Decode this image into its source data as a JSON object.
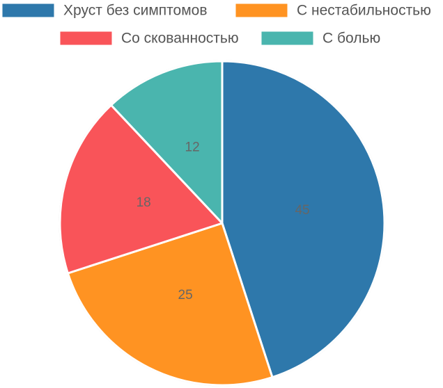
{
  "chart_data": {
    "type": "pie",
    "categories": [
      "Хруст без симптомов",
      "С нестабильностью",
      "Со скованностью",
      "С болью"
    ],
    "values": [
      45,
      25,
      18,
      12
    ],
    "colors": [
      "#2e78ab",
      "#ff9322",
      "#f95459",
      "#4ab5ae"
    ],
    "legend": "top"
  }
}
